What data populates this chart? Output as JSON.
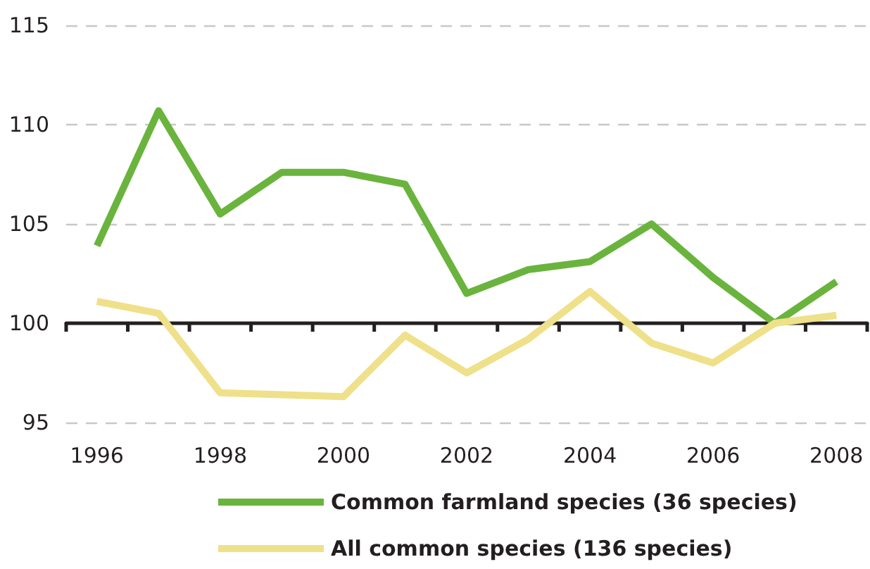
{
  "chart_data": {
    "type": "line",
    "categories": [
      "1996",
      null,
      "1998",
      null,
      "2000",
      null,
      "2002",
      null,
      "2004",
      null,
      "2006",
      null,
      "2008"
    ],
    "series": [
      {
        "name": "Common farmland species (36 species)",
        "color": "#6ab43e",
        "values": [
          103.9,
          110.7,
          105.5,
          107.6,
          107.6,
          107.0,
          101.5,
          102.7,
          103.1,
          105.0,
          102.3,
          100.0,
          102.1
        ]
      },
      {
        "name": "All common species (136 species)",
        "color": "#efe08a",
        "values": [
          101.1,
          100.5,
          96.5,
          96.4,
          96.3,
          99.4,
          97.5,
          99.2,
          101.6,
          99.0,
          98.0,
          100.0,
          100.4
        ]
      }
    ],
    "ylim": [
      95,
      115
    ],
    "yticks": [
      95,
      100,
      105,
      110,
      115
    ],
    "ref_lines": [
      {
        "axis": "y",
        "value": 100,
        "color": "#231f20"
      }
    ],
    "grid": "y",
    "legend": "bottom",
    "marker": "none",
    "line_style": "solid"
  }
}
